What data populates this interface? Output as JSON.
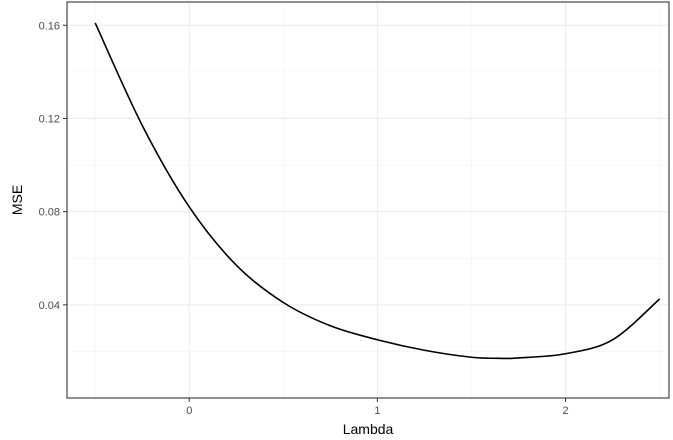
{
  "chart_data": {
    "type": "line",
    "title": "",
    "xlabel": "Lambda",
    "ylabel": "MSE",
    "xlim": [
      -0.65,
      2.55
    ],
    "ylim": [
      0.0,
      0.17
    ],
    "x_ticks": [
      0,
      1,
      2
    ],
    "x_tick_labels": [
      "0",
      "1",
      "2"
    ],
    "y_ticks": [
      0.04,
      0.08,
      0.12,
      0.16
    ],
    "y_tick_labels": [
      "0.04",
      "0.08",
      "0.12",
      "0.16"
    ],
    "grid": true,
    "theme": "bw",
    "series": [
      {
        "color": "#000000",
        "x": [
          -0.5,
          -0.25,
          0.0,
          0.25,
          0.5,
          0.75,
          1.0,
          1.25,
          1.5,
          1.67,
          1.75,
          2.0,
          2.25,
          2.5
        ],
        "y": [
          0.161,
          0.117,
          0.082,
          0.057,
          0.041,
          0.031,
          0.025,
          0.0205,
          0.0175,
          0.017,
          0.0172,
          0.019,
          0.025,
          0.0425
        ]
      }
    ]
  }
}
